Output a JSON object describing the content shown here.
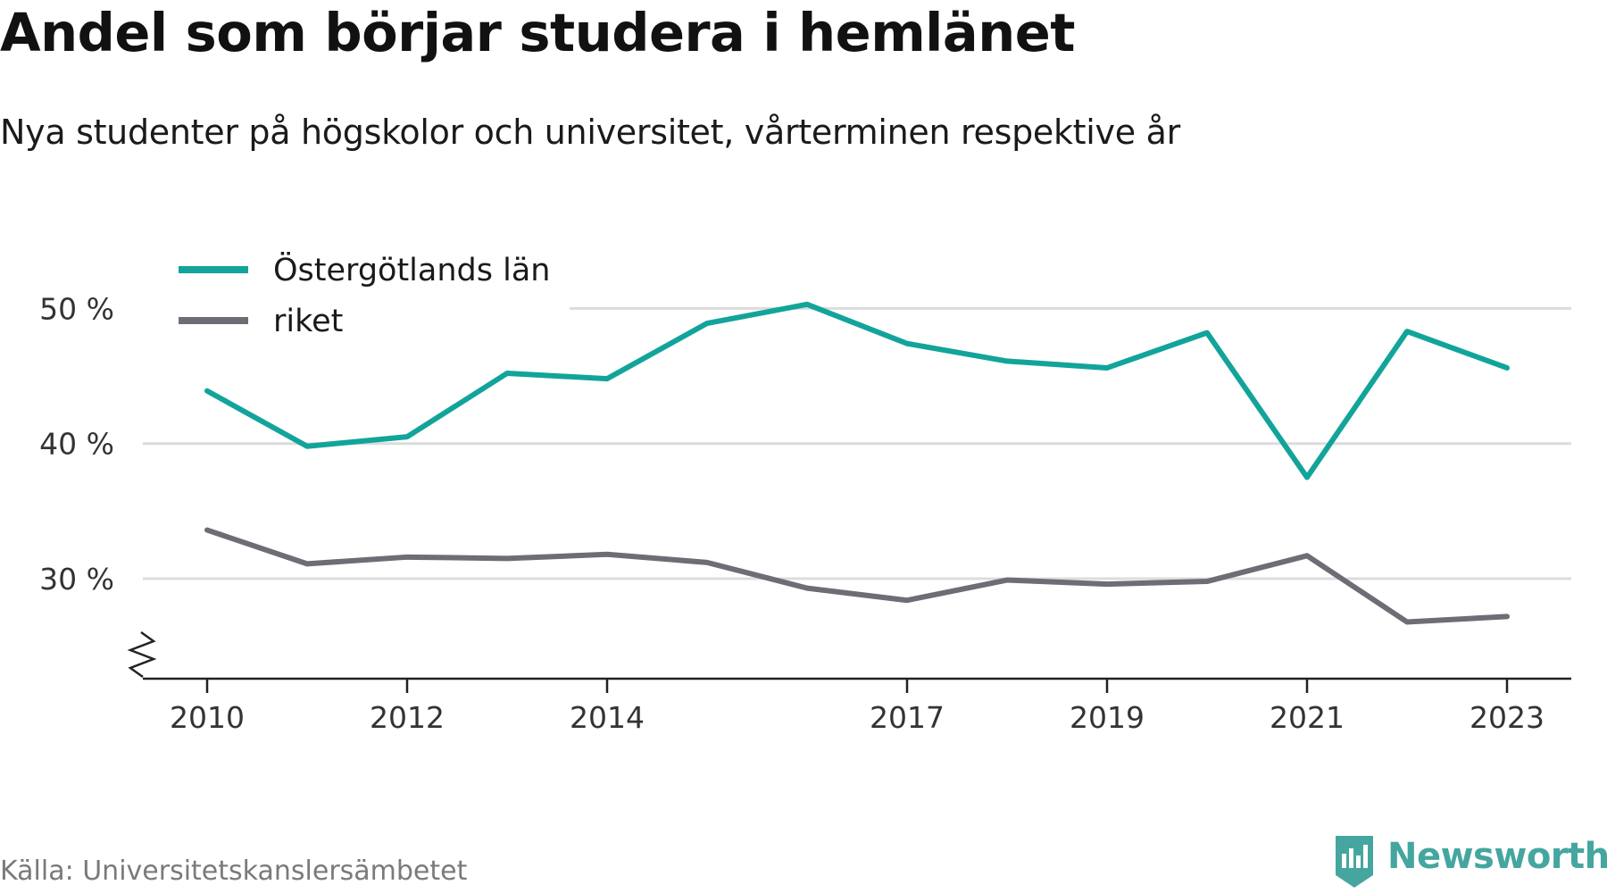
{
  "title": "Andel som börjar studera i hemlänet",
  "subtitle": "Nya studenter på högskolor och universitet, vårterminen respektive år",
  "source": "Källa: Universitetskanslersämbetet",
  "brand": "Newsworthy",
  "colors": {
    "series1": "#12a49a",
    "series2": "#6e6d76",
    "grid": "#dcdcdc",
    "axis": "#222222",
    "brand": "#45a6a0"
  },
  "chart_data": {
    "type": "line",
    "x": [
      2010,
      2011,
      2012,
      2013,
      2014,
      2015,
      2016,
      2017,
      2018,
      2019,
      2020,
      2021,
      2022,
      2023
    ],
    "series": [
      {
        "name": "Östergötlands län",
        "color": "#12a49a",
        "values": [
          43.9,
          39.8,
          40.5,
          45.2,
          44.8,
          48.9,
          50.3,
          47.4,
          46.1,
          45.6,
          48.2,
          37.5,
          48.3,
          45.6
        ]
      },
      {
        "name": "riket",
        "color": "#6e6d76",
        "values": [
          33.6,
          31.1,
          31.6,
          31.5,
          31.8,
          31.2,
          29.3,
          28.4,
          29.9,
          29.6,
          29.8,
          31.7,
          26.8,
          27.2
        ]
      }
    ],
    "xticks": [
      2010,
      2012,
      2014,
      2017,
      2019,
      2021,
      2023
    ],
    "xtick_labels": [
      "2010",
      "2012",
      "2014",
      "2017",
      "2019",
      "2021",
      "2023"
    ],
    "yticks": [
      30,
      40,
      50
    ],
    "ytick_labels": [
      "30 %",
      "40 %",
      "50 %"
    ],
    "ylim": [
      22.6,
      53
    ],
    "axis_break": true,
    "grid": true,
    "legend": "top-left"
  }
}
